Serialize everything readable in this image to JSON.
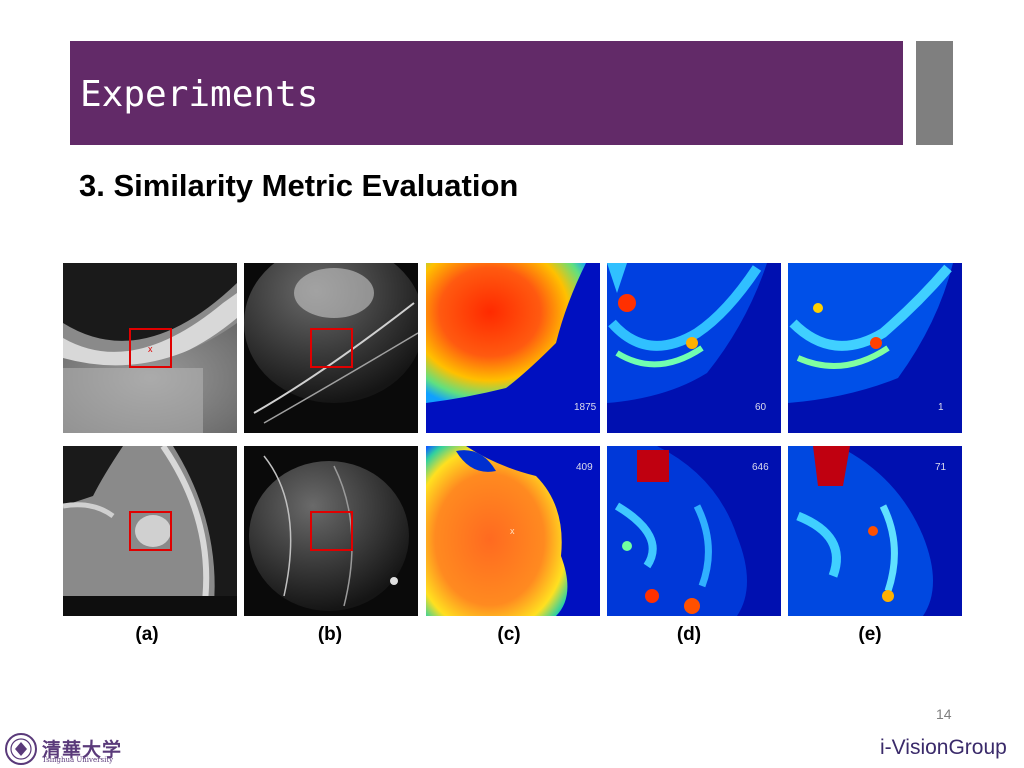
{
  "slide": {
    "title": "Experiments",
    "subtitle": "3. Similarity Metric Evaluation",
    "page_number": "14",
    "footer_brand": "i-VisionGroup",
    "university_logo_text": "清華大学",
    "university_logo_sub": "Tsinghua University"
  },
  "figure": {
    "labels": [
      "(a)",
      "(b)",
      "(c)",
      "(d)",
      "(e)"
    ],
    "overlay_values": {
      "c_top": "1875",
      "d_top": "60",
      "e_top": "1",
      "c_bottom": "409",
      "d_bottom": "646",
      "e_bottom": "71"
    }
  }
}
